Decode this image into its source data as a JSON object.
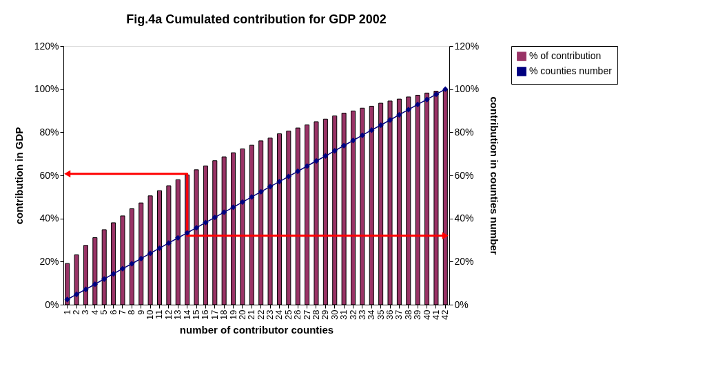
{
  "chart_data": {
    "type": "bar",
    "title": "Fig.4a Cumulated contribution for GDP 2002",
    "xlabel": "number of contributor counties",
    "ylabel": "contribution in GDP",
    "y2label": "contribution in counties number",
    "categories": [
      "1",
      "2",
      "3",
      "4",
      "5",
      "6",
      "7",
      "8",
      "9",
      "10",
      "11",
      "12",
      "13",
      "14",
      "15",
      "16",
      "17",
      "18",
      "19",
      "20",
      "21",
      "22",
      "23",
      "24",
      "25",
      "26",
      "27",
      "28",
      "29",
      "30",
      "31",
      "32",
      "33",
      "34",
      "35",
      "36",
      "37",
      "38",
      "39",
      "40",
      "41",
      "42"
    ],
    "series": [
      {
        "name": "% of contribution",
        "color": "#993366",
        "values": [
          19.1,
          23.1,
          27.5,
          31.1,
          34.8,
          38.0,
          41.2,
          44.5,
          47.2,
          50.5,
          52.9,
          55.2,
          58.0,
          60.2,
          62.6,
          64.4,
          66.8,
          68.6,
          70.5,
          72.3,
          74.0,
          76.0,
          77.3,
          79.3,
          80.6,
          82.0,
          83.4,
          84.9,
          86.1,
          87.6,
          88.9,
          89.9,
          91.2,
          92.1,
          93.5,
          94.5,
          95.4,
          96.4,
          97.2,
          98.2,
          99.1,
          100
        ]
      },
      {
        "name": "% counties number",
        "type": "line",
        "axis": "y2",
        "marker": "diamond",
        "line_style": "solid",
        "color": "#000080",
        "values": [
          2.4,
          4.8,
          7.1,
          9.5,
          11.9,
          14.3,
          16.7,
          19.0,
          21.4,
          23.8,
          26.2,
          28.6,
          31.0,
          33.3,
          35.7,
          38.1,
          40.5,
          42.9,
          45.2,
          47.6,
          50.0,
          52.4,
          54.8,
          57.1,
          59.5,
          61.9,
          64.3,
          66.7,
          69.0,
          71.4,
          73.8,
          76.2,
          78.6,
          81.0,
          83.3,
          85.7,
          88.1,
          90.5,
          92.9,
          95.2,
          97.6,
          100
        ]
      },
      {
        "type": "line",
        "color": "#ff0000",
        "marker": "triangle",
        "line_style": "solid",
        "x": [
          "1",
          "14",
          "14",
          "42"
        ],
        "values": [
          60.7,
          60.7,
          32,
          32
        ]
      }
    ],
    "ylim": [
      0,
      120
    ],
    "yticks": [
      {
        "value": 0,
        "label": "0%"
      },
      {
        "value": 20,
        "label": "20%"
      },
      {
        "value": 40,
        "label": "40%"
      },
      {
        "value": 60,
        "label": "60%"
      },
      {
        "value": 80,
        "label": "80%"
      },
      {
        "value": 100,
        "label": "100%"
      },
      {
        "value": 120,
        "label": "120%"
      }
    ],
    "y2lim": [
      0,
      120
    ],
    "y2ticks": [
      {
        "value": 0,
        "label": "0%"
      },
      {
        "value": 20,
        "label": "20%"
      },
      {
        "value": 40,
        "label": "40%"
      },
      {
        "value": 60,
        "label": "60%"
      },
      {
        "value": 80,
        "label": "80%"
      },
      {
        "value": 100,
        "label": "100%"
      },
      {
        "value": 120,
        "label": "120%"
      }
    ],
    "grid": false,
    "legend": "right"
  }
}
